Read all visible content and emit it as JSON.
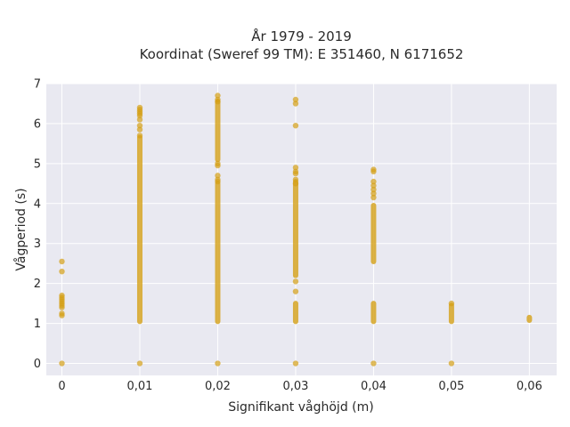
{
  "chart_data": {
    "type": "scatter",
    "title": "År 1979 - 2019",
    "subtitle": "Koordinat (Sweref 99 TM): E 351460, N 6171652",
    "xlabel": "Signifikant våghöjd (m)",
    "ylabel": "Vågperiod (s)",
    "xlim": [
      -0.002,
      0.0635
    ],
    "ylim": [
      -0.3,
      7.0
    ],
    "x_ticks": [
      0,
      0.01,
      0.02,
      0.03,
      0.04,
      0.05,
      0.06
    ],
    "x_tick_labels": [
      "0",
      "0,01",
      "0,02",
      "0,03",
      "0,04",
      "0,05",
      "0,06"
    ],
    "y_ticks": [
      0,
      1,
      2,
      3,
      4,
      5,
      6,
      7
    ],
    "y_tick_labels": [
      "0",
      "1",
      "2",
      "3",
      "4",
      "5",
      "6",
      "7"
    ],
    "grid": true,
    "marker_color": "#D4A017",
    "background_color": "#E9E9F1",
    "series": [
      {
        "points_x": [
          0,
          0,
          0,
          0,
          0,
          0,
          0,
          0,
          0,
          0,
          0,
          0,
          0.01,
          0.01,
          0.01,
          0.01,
          0.01,
          0.01,
          0.01,
          0.01,
          0.01,
          0.01,
          0.02,
          0.02,
          0.02,
          0.02,
          0.02,
          0.02,
          0.02,
          0.02,
          0.02,
          0.03,
          0.03,
          0.03,
          0.03,
          0.03,
          0.03,
          0.03,
          0.03,
          0.03,
          0.03,
          0.03,
          0.04,
          0.04,
          0.04,
          0.04,
          0.04,
          0.04,
          0.04,
          0.04,
          0.05,
          0.05
        ],
        "points_y": [
          0,
          1.2,
          1.25,
          1.45,
          1.5,
          1.55,
          1.6,
          1.7,
          2.3,
          2.55,
          1.4,
          1.65,
          0,
          5.7,
          5.85,
          5.95,
          6.1,
          6.2,
          6.25,
          6.3,
          6.35,
          6.4,
          0,
          4.55,
          4.6,
          4.7,
          4.95,
          5.0,
          6.55,
          6.6,
          6.7,
          0,
          1.8,
          2.05,
          4.5,
          4.6,
          4.75,
          4.8,
          4.9,
          5.95,
          6.5,
          6.6,
          0,
          4.15,
          4.25,
          4.35,
          4.45,
          4.55,
          4.8,
          4.85,
          0,
          1.5
        ],
        "ranges": [
          {
            "x": 0.01,
            "y_from": 1.05,
            "y_to": 5.65
          },
          {
            "x": 0.02,
            "y_from": 1.05,
            "y_to": 4.5
          },
          {
            "x": 0.02,
            "y_from": 5.1,
            "y_to": 6.55
          },
          {
            "x": 0.03,
            "y_from": 1.05,
            "y_to": 1.5
          },
          {
            "x": 0.03,
            "y_from": 2.2,
            "y_to": 4.55
          },
          {
            "x": 0.04,
            "y_from": 1.05,
            "y_to": 1.5
          },
          {
            "x": 0.04,
            "y_from": 2.55,
            "y_to": 3.95
          },
          {
            "x": 0.05,
            "y_from": 1.05,
            "y_to": 1.45
          },
          {
            "x": 0.06,
            "y_from": 1.08,
            "y_to": 1.15
          }
        ]
      }
    ]
  }
}
